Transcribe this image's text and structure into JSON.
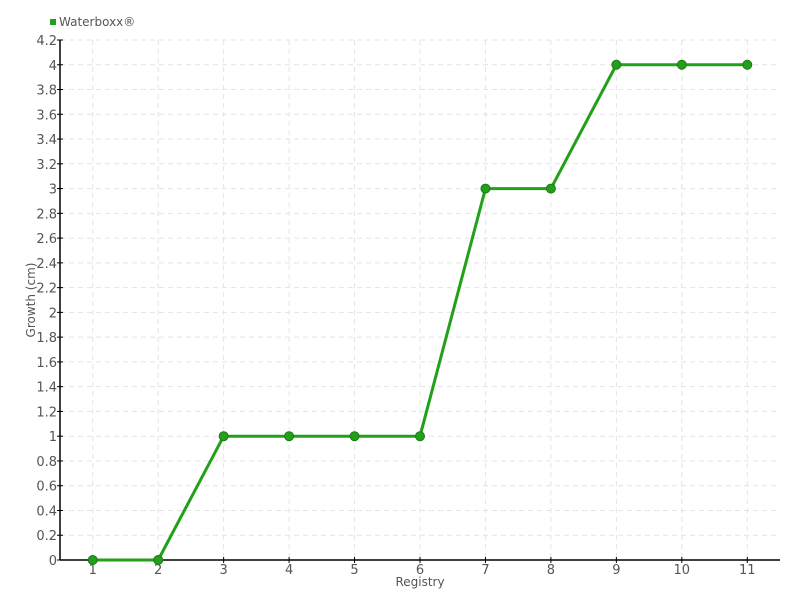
{
  "chart_data": {
    "type": "line",
    "title": "",
    "xlabel": "Registry",
    "ylabel": "Growth (cm)",
    "x": [
      1,
      2,
      3,
      4,
      5,
      6,
      7,
      8,
      9,
      10,
      11
    ],
    "categories": [
      "1",
      "2",
      "3",
      "4",
      "5",
      "6",
      "7",
      "8",
      "9",
      "10",
      "11"
    ],
    "series": [
      {
        "name": "Waterboxx®",
        "values": [
          0,
          0,
          1,
          1,
          1,
          1,
          3,
          3,
          4,
          4,
          4
        ],
        "color": "#22a01a"
      }
    ],
    "xlim": [
      0.5,
      11.5
    ],
    "ylim": [
      0,
      4.2
    ],
    "yticks": [
      "0",
      "0.2",
      "0.4",
      "0.6",
      "0.8",
      "1",
      "1.2",
      "1.4",
      "1.6",
      "1.8",
      "2",
      "2.2",
      "2.4",
      "2.6",
      "2.8",
      "3",
      "3.2",
      "3.4",
      "3.6",
      "3.8",
      "4",
      "4.2"
    ],
    "grid": true,
    "legend_position": "top-left"
  }
}
